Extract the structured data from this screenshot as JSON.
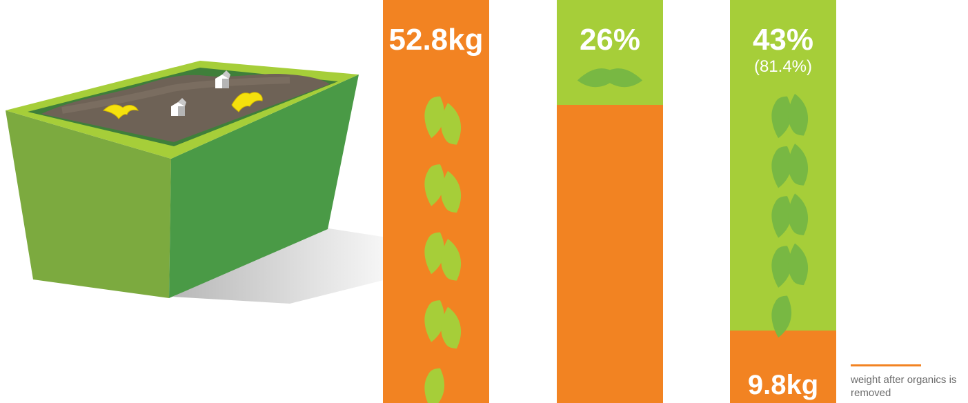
{
  "colors": {
    "orange": "#f28322",
    "lime": "#a6ce39",
    "leaf_on_orange": "#a6ce39",
    "leaf_on_lime": "#78b843",
    "bin_front": "#4a9a46",
    "bin_side": "#7caa3f",
    "bin_rim": "#a6ce39",
    "soil": "#6e6256",
    "note_text": "#6b6b6b"
  },
  "icons": {
    "bin": "bin-illustration",
    "top_icon_col2": "green-circle-icon",
    "top_icon_col3": "green-box-icon"
  },
  "chart_data": {
    "type": "bar",
    "stacked": true,
    "note": "weight after organics is removed",
    "columns": [
      {
        "label": "52.8kg",
        "segments": [
          {
            "color": "#f28322",
            "fraction": 1.0,
            "leaves": true
          }
        ]
      },
      {
        "label": "26%",
        "value": 26,
        "segments": [
          {
            "color": "#a6ce39",
            "fraction": 0.26,
            "leaves": true
          },
          {
            "color": "#f28322",
            "fraction": 0.74,
            "leaves": false
          }
        ]
      },
      {
        "label": "43%",
        "sublabel": "(81.4%)",
        "value": 43,
        "bottom_label": "9.8kg",
        "segments": [
          {
            "color": "#a6ce39",
            "fraction": 0.82,
            "leaves": true
          },
          {
            "color": "#f28322",
            "fraction": 0.18,
            "leaves": false
          }
        ]
      }
    ]
  }
}
